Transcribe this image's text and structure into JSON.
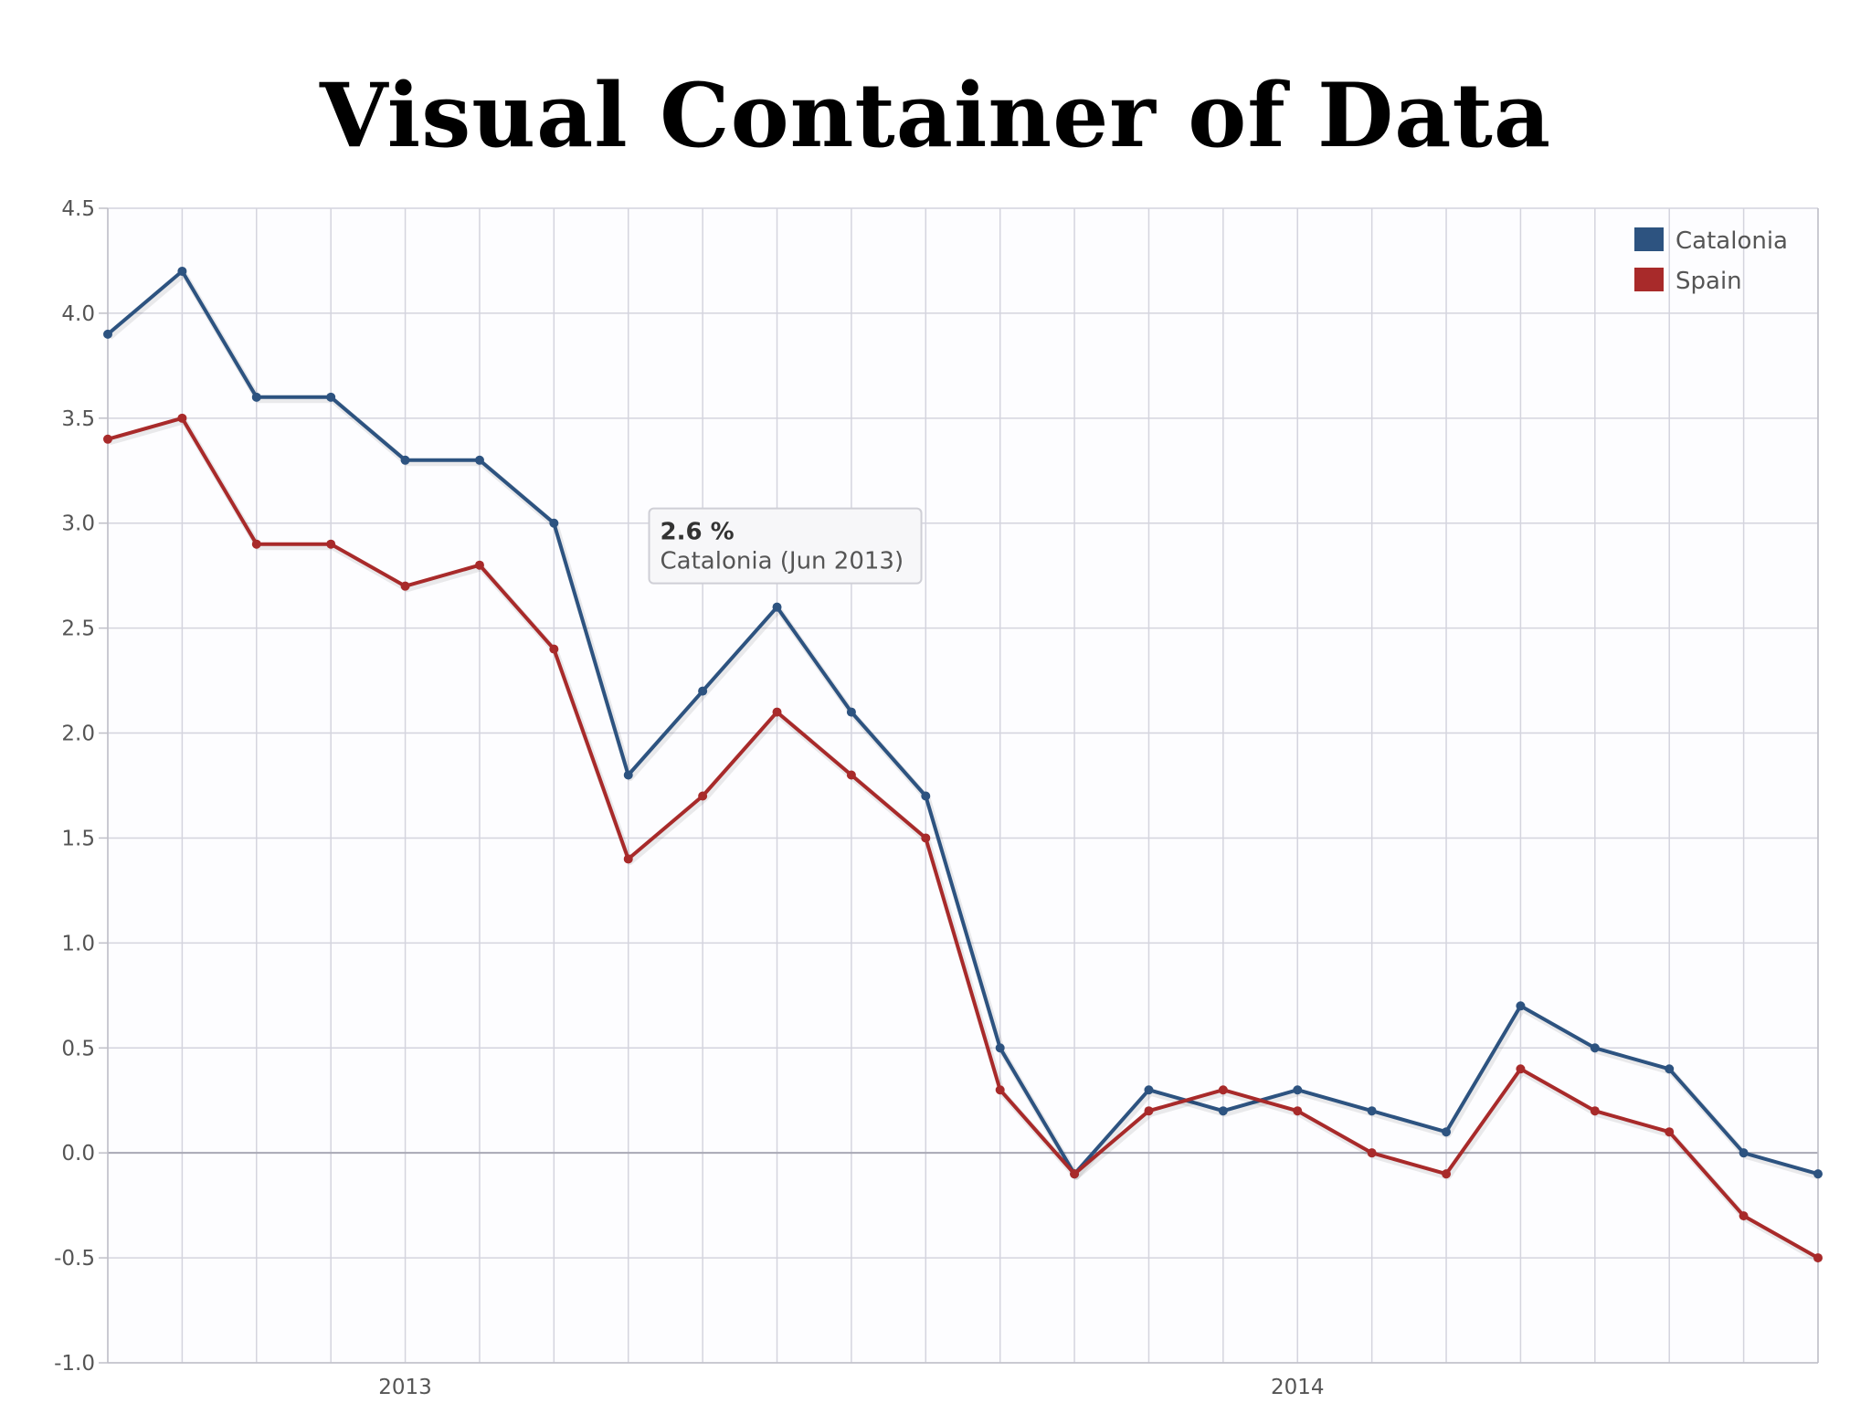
{
  "chart_data": {
    "type": "line",
    "title": "Visual Container of Data",
    "xlabel": "",
    "ylabel": "",
    "ylim": [
      -1.0,
      4.5
    ],
    "y_ticks": [
      "4.5",
      "4.0",
      "3.5",
      "3.0",
      "2.5",
      "2.0",
      "1.5",
      "1.0",
      "0.5",
      "0.0",
      "-0.5",
      "-1.0"
    ],
    "x_tick_labels": [
      {
        "label": "2013",
        "index": 4
      },
      {
        "label": "2014",
        "index": 16
      }
    ],
    "x_count": 24,
    "grid": true,
    "legend_position": "top-right",
    "series": [
      {
        "name": "Catalonia",
        "color": "#2d5380",
        "values": [
          3.9,
          4.2,
          3.6,
          3.6,
          3.3,
          3.3,
          3.0,
          1.8,
          2.2,
          2.6,
          2.1,
          1.7,
          0.5,
          -0.1,
          0.3,
          0.2,
          0.3,
          0.2,
          0.1,
          0.7,
          0.5,
          0.4,
          0.0,
          -0.1
        ]
      },
      {
        "name": "Spain",
        "color": "#a82a2a",
        "values": [
          3.4,
          3.5,
          2.9,
          2.9,
          2.7,
          2.8,
          2.4,
          1.4,
          1.7,
          2.1,
          1.8,
          1.5,
          0.3,
          -0.1,
          0.2,
          0.3,
          0.2,
          0.0,
          -0.1,
          0.4,
          0.2,
          0.1,
          -0.3,
          -0.5
        ]
      }
    ],
    "tooltip": {
      "value": "2.6 %",
      "label": "Catalonia (Jun 2013)",
      "series_index": 0,
      "point_index": 9
    }
  }
}
